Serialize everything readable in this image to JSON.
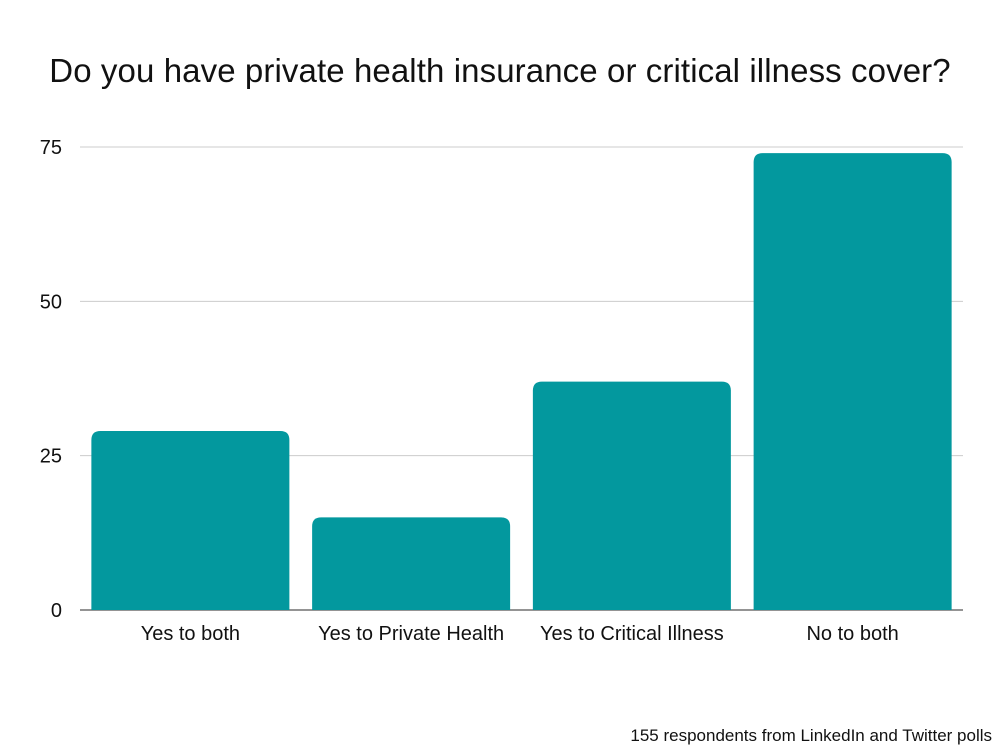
{
  "chart_data": {
    "type": "bar",
    "title": "Do you have private health insurance or critical illness cover?",
    "categories": [
      "Yes to both",
      "Yes to Private Health",
      "Yes to Critical Illness",
      "No to both"
    ],
    "values": [
      29,
      15,
      37,
      74
    ],
    "ylim": [
      0,
      75
    ],
    "yticks": [
      0,
      25,
      50,
      75
    ],
    "xlabel": "",
    "ylabel": "",
    "grid": true,
    "legend": "none",
    "bar_color": "#03989e",
    "gridline_color": "#cccccc"
  },
  "footnote": "155 respondents from LinkedIn and Twitter polls"
}
